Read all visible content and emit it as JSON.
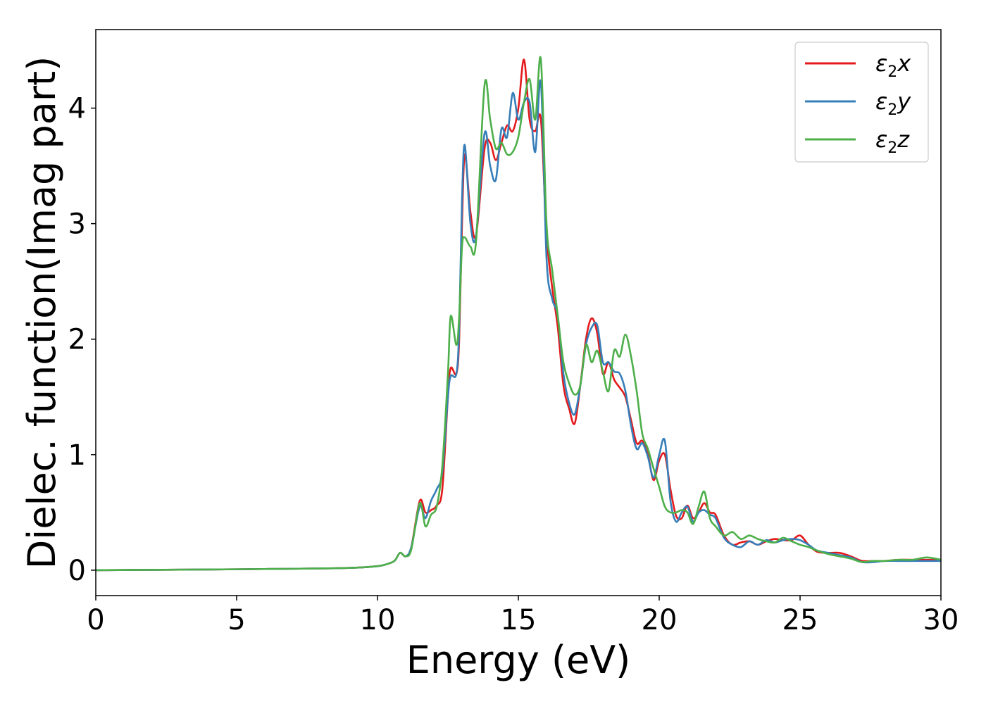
{
  "chart_data": {
    "type": "line",
    "title": "",
    "xlabel": "Energy (eV)",
    "ylabel": "Dielec. function(Imag part)",
    "xlim": [
      0,
      30
    ],
    "ylim": [
      -0.22,
      4.68
    ],
    "xticks": [
      0,
      5,
      10,
      15,
      20,
      25,
      30
    ],
    "yticks": [
      0,
      1,
      2,
      3,
      4
    ],
    "grid": false,
    "legend_position": "top-right",
    "legend": [
      {
        "key": "x",
        "base": "ε",
        "sub": "2",
        "suffix": "x",
        "color": "#e41a1c"
      },
      {
        "key": "y",
        "base": "ε",
        "sub": "2",
        "suffix": "y",
        "color": "#377eb8"
      },
      {
        "key": "z",
        "base": "ε",
        "sub": "2",
        "suffix": "z",
        "color": "#4daf4a"
      }
    ],
    "series": [
      {
        "color": "#e41a1c",
        "x": [
          0,
          2,
          4,
          6,
          8,
          9,
          9.5,
          10,
          10.3,
          10.6,
          10.8,
          11.0,
          11.2,
          11.5,
          11.7,
          11.9,
          12.1,
          12.3,
          12.5,
          12.6,
          12.8,
          12.9,
          13.0,
          13.1,
          13.3,
          13.5,
          13.8,
          14.0,
          14.2,
          14.4,
          14.6,
          14.8,
          15.0,
          15.2,
          15.4,
          15.6,
          15.8,
          16.0,
          16.2,
          16.4,
          16.6,
          16.8,
          17.0,
          17.2,
          17.4,
          17.6,
          17.8,
          18.0,
          18.2,
          18.4,
          18.6,
          18.8,
          19.0,
          19.2,
          19.4,
          19.6,
          19.8,
          20.0,
          20.2,
          20.4,
          20.6,
          20.8,
          21.0,
          21.2,
          21.4,
          21.6,
          21.8,
          22.0,
          22.3,
          22.6,
          22.9,
          23.2,
          23.5,
          23.8,
          24.1,
          24.4,
          24.7,
          25.0,
          25.3,
          25.6,
          26.0,
          26.4,
          26.8,
          27.2,
          27.6,
          28.0,
          28.5,
          29.0,
          29.5,
          30.0
        ],
        "values": [
          0.0,
          0.003,
          0.006,
          0.01,
          0.015,
          0.02,
          0.025,
          0.035,
          0.05,
          0.08,
          0.15,
          0.12,
          0.2,
          0.6,
          0.5,
          0.52,
          0.56,
          0.7,
          1.5,
          1.75,
          1.7,
          2.0,
          3.0,
          3.6,
          3.1,
          2.9,
          3.65,
          3.7,
          3.55,
          3.7,
          3.85,
          3.8,
          4.0,
          4.42,
          3.9,
          3.8,
          3.9,
          2.9,
          2.45,
          2.1,
          1.6,
          1.4,
          1.27,
          1.6,
          2.0,
          2.18,
          2.05,
          1.7,
          1.8,
          1.65,
          1.58,
          1.5,
          1.3,
          1.1,
          1.12,
          1.0,
          0.78,
          0.95,
          1.0,
          0.7,
          0.47,
          0.45,
          0.56,
          0.45,
          0.5,
          0.58,
          0.5,
          0.48,
          0.3,
          0.22,
          0.24,
          0.25,
          0.22,
          0.25,
          0.27,
          0.26,
          0.26,
          0.3,
          0.22,
          0.16,
          0.15,
          0.15,
          0.12,
          0.08,
          0.08,
          0.08,
          0.09,
          0.09,
          0.09,
          0.09
        ]
      },
      {
        "color": "#377eb8",
        "x": [
          0,
          2,
          4,
          6,
          8,
          9,
          9.5,
          10,
          10.3,
          10.6,
          10.8,
          11.0,
          11.2,
          11.5,
          11.7,
          11.9,
          12.1,
          12.3,
          12.5,
          12.6,
          12.8,
          12.9,
          13.0,
          13.1,
          13.3,
          13.5,
          13.8,
          14.0,
          14.2,
          14.4,
          14.6,
          14.8,
          15.0,
          15.2,
          15.4,
          15.6,
          15.8,
          16.0,
          16.2,
          16.4,
          16.6,
          16.8,
          17.0,
          17.2,
          17.4,
          17.6,
          17.8,
          18.0,
          18.2,
          18.4,
          18.6,
          18.8,
          19.0,
          19.2,
          19.4,
          19.6,
          19.8,
          20.0,
          20.2,
          20.4,
          20.6,
          20.8,
          21.0,
          21.2,
          21.4,
          21.6,
          21.8,
          22.0,
          22.3,
          22.6,
          22.9,
          23.2,
          23.5,
          23.8,
          24.1,
          24.4,
          24.7,
          25.0,
          25.3,
          25.6,
          26.0,
          26.4,
          26.8,
          27.2,
          27.6,
          28.0,
          28.5,
          29.0,
          29.5,
          30.0
        ],
        "values": [
          0.0,
          0.003,
          0.006,
          0.01,
          0.015,
          0.02,
          0.025,
          0.035,
          0.05,
          0.08,
          0.15,
          0.12,
          0.2,
          0.55,
          0.45,
          0.6,
          0.7,
          0.85,
          1.5,
          1.68,
          1.7,
          2.1,
          3.2,
          3.68,
          3.0,
          2.9,
          3.78,
          3.5,
          3.38,
          3.82,
          3.75,
          4.13,
          3.9,
          4.05,
          4.05,
          3.62,
          4.22,
          2.7,
          2.35,
          2.2,
          1.7,
          1.45,
          1.35,
          1.6,
          1.95,
          2.1,
          2.12,
          1.8,
          1.8,
          1.72,
          1.7,
          1.55,
          1.25,
          1.05,
          1.1,
          0.98,
          0.8,
          1.0,
          1.12,
          0.6,
          0.42,
          0.5,
          0.55,
          0.42,
          0.5,
          0.52,
          0.48,
          0.45,
          0.28,
          0.22,
          0.2,
          0.25,
          0.22,
          0.26,
          0.24,
          0.26,
          0.27,
          0.26,
          0.22,
          0.17,
          0.15,
          0.13,
          0.11,
          0.07,
          0.07,
          0.08,
          0.08,
          0.08,
          0.08,
          0.08
        ]
      },
      {
        "color": "#4daf4a",
        "x": [
          0,
          2,
          4,
          6,
          8,
          9,
          9.5,
          10,
          10.3,
          10.6,
          10.8,
          11.0,
          11.2,
          11.5,
          11.7,
          11.9,
          12.1,
          12.3,
          12.5,
          12.6,
          12.8,
          12.9,
          13.0,
          13.1,
          13.3,
          13.5,
          13.8,
          14.0,
          14.2,
          14.4,
          14.6,
          14.8,
          15.0,
          15.2,
          15.4,
          15.6,
          15.8,
          16.0,
          16.2,
          16.4,
          16.6,
          16.8,
          17.0,
          17.2,
          17.4,
          17.6,
          17.8,
          18.0,
          18.2,
          18.4,
          18.6,
          18.8,
          19.0,
          19.2,
          19.4,
          19.6,
          19.8,
          20.0,
          20.2,
          20.4,
          20.6,
          20.8,
          21.0,
          21.2,
          21.4,
          21.6,
          21.8,
          22.0,
          22.3,
          22.6,
          22.9,
          23.2,
          23.5,
          23.8,
          24.1,
          24.4,
          24.7,
          25.0,
          25.3,
          25.6,
          26.0,
          26.4,
          26.8,
          27.2,
          27.6,
          28.0,
          28.5,
          29.0,
          29.5,
          30.0
        ],
        "values": [
          0.0,
          0.003,
          0.006,
          0.01,
          0.015,
          0.02,
          0.025,
          0.035,
          0.05,
          0.08,
          0.15,
          0.12,
          0.18,
          0.58,
          0.38,
          0.48,
          0.55,
          0.9,
          1.7,
          2.2,
          1.95,
          2.2,
          2.8,
          2.88,
          2.8,
          2.85,
          4.2,
          3.9,
          3.65,
          3.7,
          3.6,
          3.62,
          3.75,
          4.05,
          4.25,
          3.9,
          4.42,
          3.0,
          2.6,
          2.2,
          1.8,
          1.62,
          1.52,
          1.6,
          1.95,
          1.8,
          1.9,
          1.72,
          1.55,
          1.9,
          1.85,
          2.04,
          1.85,
          1.55,
          1.18,
          1.05,
          0.88,
          0.72,
          0.55,
          0.5,
          0.5,
          0.52,
          0.5,
          0.4,
          0.55,
          0.68,
          0.45,
          0.38,
          0.3,
          0.33,
          0.27,
          0.3,
          0.27,
          0.25,
          0.24,
          0.28,
          0.25,
          0.22,
          0.2,
          0.17,
          0.14,
          0.12,
          0.1,
          0.07,
          0.08,
          0.08,
          0.09,
          0.09,
          0.11,
          0.09
        ]
      }
    ]
  }
}
